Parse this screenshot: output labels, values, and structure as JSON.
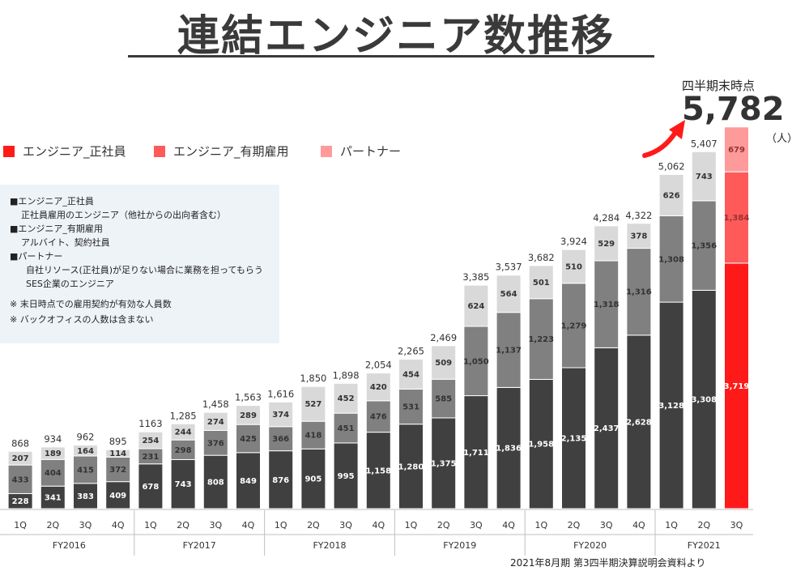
{
  "title": "連結エンジニア数推移",
  "legend": [
    {
      "label": "エンジニア_正社員",
      "color": "#ff1a1a"
    },
    {
      "label": "エンジニア_有期雇用",
      "color": "#ff5a5a"
    },
    {
      "label": "パートナー",
      "color": "#ff9a9a"
    }
  ],
  "notes": {
    "line1": "■エンジニア_正社員",
    "line2": "正社員雇用のエンジニア（他社からの出向者含む）",
    "line3": "■エンジニア_有期雇用",
    "line4": "アルバイト、契約社員",
    "line5": "■パートナー",
    "line6": "自社リソース(正社員)が足りない場合に業務を担ってもらう",
    "line7": "SES企業のエンジニア",
    "line8": "※  末日時点での雇用契約が有効な人員数",
    "line9": "※  バックオフィスの人数は含まない"
  },
  "callout": {
    "label": "四半期末時点",
    "total": "5,782",
    "unit": "（人）"
  },
  "source": "2021年8月期  第3四半期決算説明会資料より",
  "colors": {
    "fulltime": "#404040",
    "fixed_term": "#808080",
    "partner": "#d9d9d9",
    "highlight_fulltime": "#ff1a1a",
    "highlight_fixed_term": "#ff5a5a",
    "highlight_partner": "#ff9a9a",
    "arrow": "#ff1a1a"
  },
  "chart_data": {
    "type": "bar",
    "stacked": true,
    "ylabel": "",
    "fiscal_years": [
      "FY2016",
      "FY2017",
      "FY2018",
      "FY2019",
      "FY2020",
      "FY2021"
    ],
    "categories": [
      "1Q",
      "2Q",
      "3Q",
      "4Q",
      "1Q",
      "2Q",
      "3Q",
      "4Q",
      "1Q",
      "2Q",
      "3Q",
      "4Q",
      "1Q",
      "2Q",
      "3Q",
      "4Q",
      "1Q",
      "2Q",
      "3Q",
      "4Q",
      "1Q",
      "2Q",
      "3Q"
    ],
    "series": [
      {
        "name": "エンジニア_正社員",
        "values": [
          228,
          341,
          383,
          409,
          678,
          743,
          808,
          849,
          876,
          905,
          995,
          1158,
          1280,
          1375,
          1711,
          1836,
          1958,
          2135,
          2437,
          2628,
          3128,
          3308,
          3719
        ]
      },
      {
        "name": "エンジニア_有期雇用",
        "values": [
          433,
          404,
          415,
          372,
          231,
          298,
          376,
          425,
          366,
          418,
          451,
          476,
          531,
          585,
          1050,
          1137,
          1223,
          1279,
          1318,
          1316,
          1308,
          1356,
          1384
        ]
      },
      {
        "name": "パートナー",
        "values": [
          207,
          189,
          164,
          114,
          254,
          244,
          274,
          289,
          374,
          527,
          452,
          420,
          454,
          509,
          624,
          564,
          501,
          510,
          529,
          378,
          626,
          743,
          679
        ]
      }
    ],
    "segment_labels": {
      "fulltime": [
        "228",
        "341",
        "383",
        "409",
        "678",
        "743",
        "808",
        "849",
        "876",
        "905",
        "995",
        "1,158",
        "1,280",
        "1,375",
        "1,711",
        "1,836",
        "1,958",
        "2,135",
        "2,437",
        "2,628",
        "3,128",
        "3,308",
        "3,719"
      ],
      "fixed_term": [
        "433",
        "404",
        "415",
        "372",
        "231",
        "298",
        "376",
        "425",
        "366",
        "418",
        "451",
        "476",
        "531",
        "585",
        "1,050",
        "1,137",
        "1,223",
        "1,279",
        "1,318",
        "1,316",
        "1,308",
        "1,356",
        "1,384"
      ],
      "partner": [
        "207",
        "189",
        "164",
        "114",
        "254",
        "244",
        "274",
        "289",
        "374",
        "527",
        "452",
        "420",
        "454",
        "509",
        "624",
        "564",
        "501",
        "510",
        "529",
        "378",
        "626",
        "743",
        "679"
      ]
    },
    "totals": [
      "868",
      "934",
      "962",
      "895",
      "1163",
      "1,285",
      "1,458",
      "1,563",
      "1,616",
      "1,850",
      "1,898",
      "2,054",
      "2,265",
      "2,469",
      "3,385",
      "3,537",
      "3,682",
      "3,924",
      "4,284",
      "4,322",
      "5,062",
      "5,407",
      ""
    ],
    "highlight_index": 22
  }
}
